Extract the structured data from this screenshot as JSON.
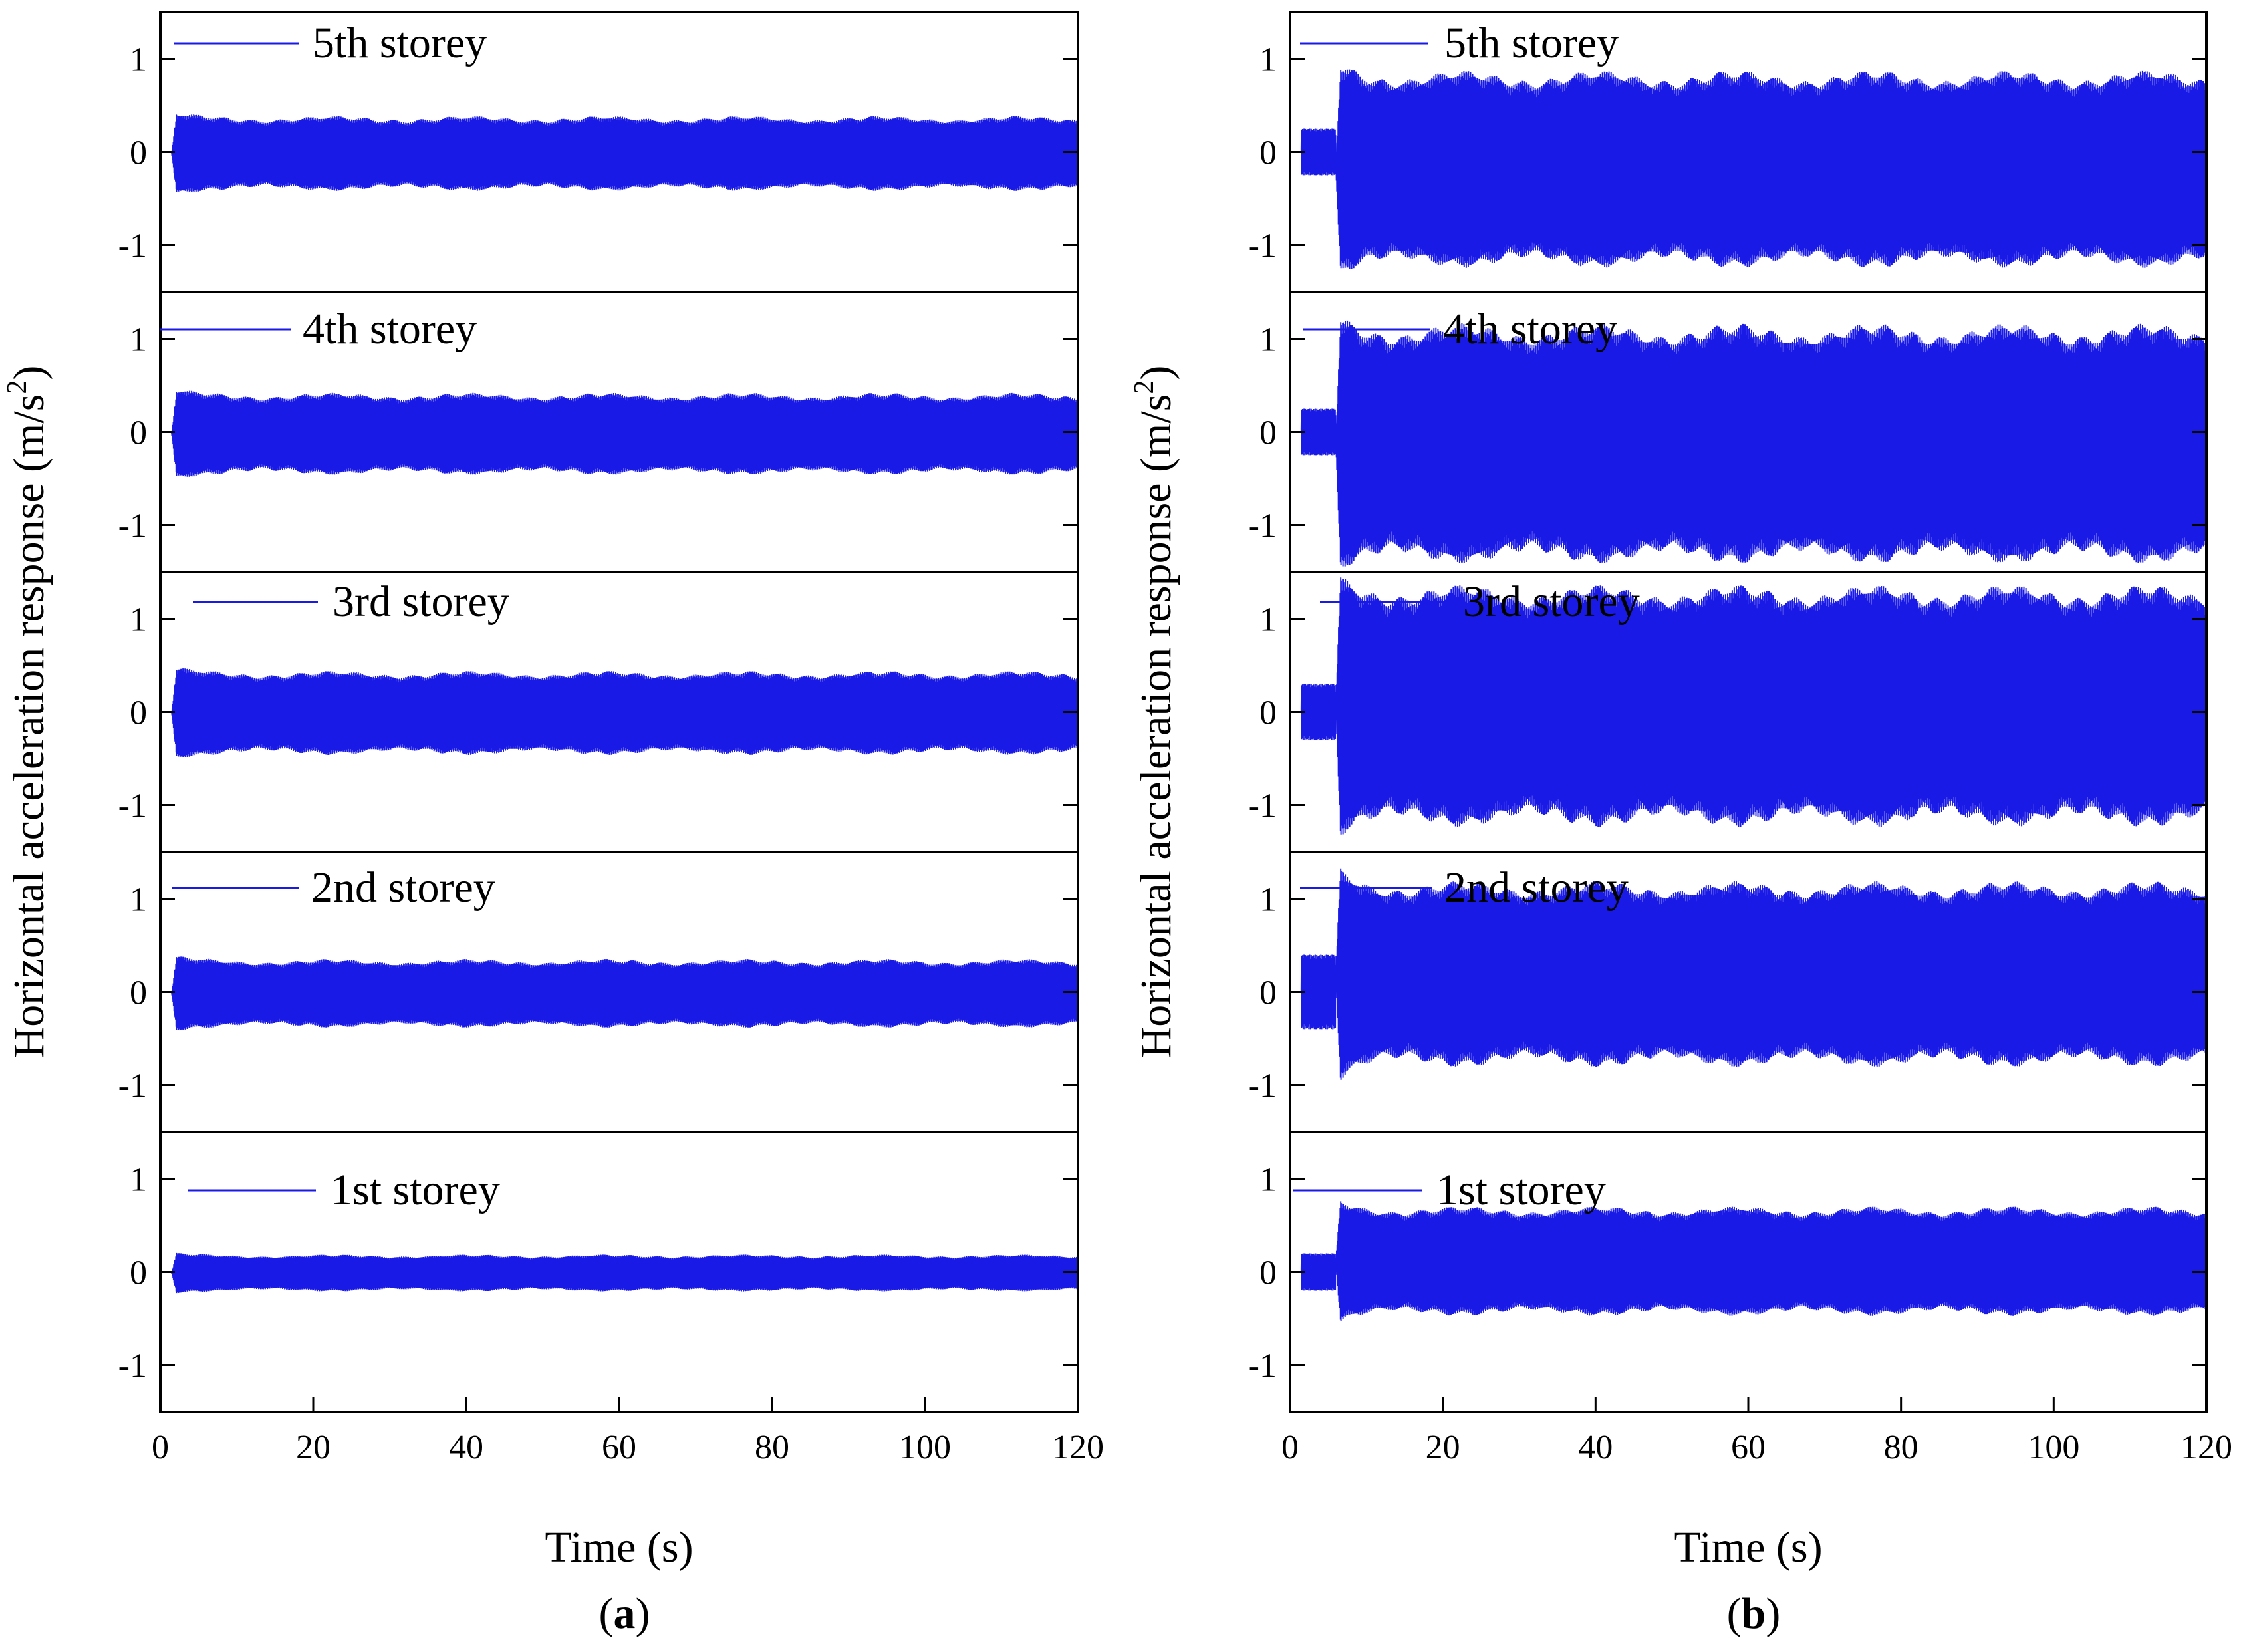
{
  "colors": {
    "signal": "#1a1ae6",
    "axis": "#000000",
    "background": "#ffffff"
  },
  "chart_data": [
    {
      "type": "line",
      "panel_label": "a",
      "xlabel": "Time (s)",
      "ylabel_base": "Horizontal acceleration response (m/s",
      "ylabel_sup": "2",
      "ylabel_close": ")",
      "xlim": [
        0,
        120
      ],
      "ylim": [
        -1.5,
        1.5
      ],
      "x_ticks": [
        "0",
        "20",
        "40",
        "60",
        "80",
        "100",
        "120"
      ],
      "y_ticks": [
        "1",
        "0",
        "-1"
      ],
      "series": [
        {
          "name": "5th storey",
          "excitation_start": 1.5,
          "transient_peak": 0.45,
          "envelope_max": 0.35,
          "envelope_min": -0.38,
          "offset": 0.0
        },
        {
          "name": "4th storey",
          "excitation_start": 1.5,
          "transient_peak": 0.5,
          "envelope_max": 0.38,
          "envelope_min": -0.42,
          "offset": 0.0
        },
        {
          "name": "3rd storey",
          "excitation_start": 1.5,
          "transient_peak": 0.5,
          "envelope_max": 0.4,
          "envelope_min": -0.42,
          "offset": 0.0
        },
        {
          "name": "2nd storey",
          "excitation_start": 1.5,
          "transient_peak": 0.4,
          "envelope_max": 0.32,
          "envelope_min": -0.35,
          "offset": 0.0
        },
        {
          "name": "1st storey",
          "excitation_start": 1.5,
          "transient_peak": 0.22,
          "envelope_max": 0.17,
          "envelope_min": -0.19,
          "offset": 0.0
        }
      ]
    },
    {
      "type": "line",
      "panel_label": "b",
      "xlabel": "Time (s)",
      "ylabel_base": "Horizontal acceleration response (m/s",
      "ylabel_sup": "2",
      "ylabel_close": ")",
      "xlim": [
        0,
        120
      ],
      "ylim": [
        -1.5,
        1.5
      ],
      "x_ticks": [
        "0",
        "20",
        "40",
        "60",
        "80",
        "100",
        "120"
      ],
      "y_ticks": [
        "1",
        "0",
        "-1"
      ],
      "series": [
        {
          "name": "5th storey",
          "excitation_start": 6.0,
          "transient_peak": 0.25,
          "envelope_max": 0.78,
          "envelope_min": -1.15,
          "offset": -0.18
        },
        {
          "name": "4th storey",
          "excitation_start": 6.0,
          "transient_peak": 0.25,
          "envelope_max": 1.05,
          "envelope_min": -1.3,
          "offset": -0.12
        },
        {
          "name": "3rd storey",
          "excitation_start": 6.0,
          "transient_peak": 0.3,
          "envelope_max": 1.25,
          "envelope_min": -1.12,
          "offset": 0.05
        },
        {
          "name": "2nd storey",
          "excitation_start": 6.0,
          "transient_peak": 0.4,
          "envelope_max": 1.1,
          "envelope_min": -0.72,
          "offset": 0.18
        },
        {
          "name": "1st storey",
          "excitation_start": 6.0,
          "transient_peak": 0.2,
          "envelope_max": 0.65,
          "envelope_min": -0.42,
          "offset": 0.12
        }
      ]
    }
  ]
}
